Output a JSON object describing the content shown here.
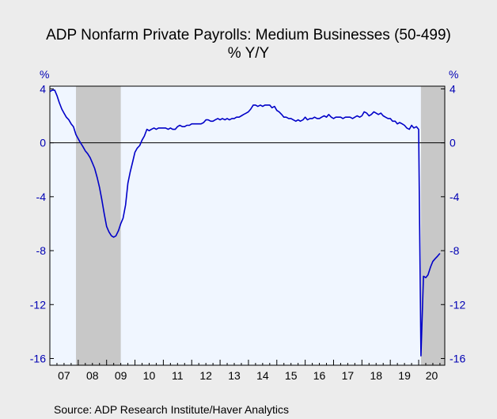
{
  "title": "ADP Nonfarm Private Payrolls: Medium Businesses (50-499)",
  "subtitle": "% Y/Y",
  "source": "Source:  ADP Research Institute/Haver Analytics",
  "y_unit_left": "%",
  "y_unit_right": "%",
  "colors": {
    "background": "#ececec",
    "plot_background": "#f0f6ff",
    "line": "#0000c8",
    "tick_labels": "#0000b4",
    "recession": "#c8c8c8"
  },
  "chart_data": {
    "type": "line",
    "title": "ADP Nonfarm Private Payrolls: Medium Businesses (50-499)",
    "subtitle": "% Y/Y",
    "xlabel": "",
    "ylabel": "%",
    "ylim": [
      -16.5,
      4.2
    ],
    "xlim": [
      2007.0,
      2020.92
    ],
    "yticks": [
      4,
      0,
      -4,
      -8,
      -12,
      -16
    ],
    "ytick_labels": [
      "4",
      "0",
      "-4",
      "-8",
      "-12",
      "-16"
    ],
    "xtick_labels": [
      "07",
      "08",
      "09",
      "10",
      "11",
      "12",
      "13",
      "14",
      "15",
      "16",
      "17",
      "18",
      "19",
      "20"
    ],
    "zero_line": true,
    "grid": false,
    "recessions": [
      [
        2007.92,
        2009.5
      ],
      [
        2020.08,
        2020.92
      ]
    ],
    "series": [
      {
        "x": [
          2007.0,
          2007.08,
          2007.17,
          2007.25,
          2007.33,
          2007.42,
          2007.5,
          2007.58,
          2007.67,
          2007.75,
          2007.83,
          2007.92,
          2008.0,
          2008.08,
          2008.17,
          2008.25,
          2008.33,
          2008.42,
          2008.5,
          2008.58,
          2008.67,
          2008.75,
          2008.83,
          2008.92,
          2009.0,
          2009.08,
          2009.17,
          2009.25,
          2009.33,
          2009.42,
          2009.5,
          2009.58,
          2009.67,
          2009.75,
          2009.83,
          2009.92,
          2010.0,
          2010.08,
          2010.17,
          2010.25,
          2010.33,
          2010.42,
          2010.5,
          2010.58,
          2010.67,
          2010.75,
          2010.83,
          2010.92,
          2011.0,
          2011.08,
          2011.17,
          2011.25,
          2011.33,
          2011.42,
          2011.5,
          2011.58,
          2011.67,
          2011.75,
          2011.83,
          2011.92,
          2012.0,
          2012.08,
          2012.17,
          2012.25,
          2012.33,
          2012.42,
          2012.5,
          2012.58,
          2012.67,
          2012.75,
          2012.83,
          2012.92,
          2013.0,
          2013.08,
          2013.17,
          2013.25,
          2013.33,
          2013.42,
          2013.5,
          2013.58,
          2013.67,
          2013.75,
          2013.83,
          2013.92,
          2014.0,
          2014.08,
          2014.17,
          2014.25,
          2014.33,
          2014.42,
          2014.5,
          2014.58,
          2014.67,
          2014.75,
          2014.83,
          2014.92,
          2015.0,
          2015.08,
          2015.17,
          2015.25,
          2015.33,
          2015.42,
          2015.5,
          2015.58,
          2015.67,
          2015.75,
          2015.83,
          2015.92,
          2016.0,
          2016.08,
          2016.17,
          2016.25,
          2016.33,
          2016.42,
          2016.5,
          2016.58,
          2016.67,
          2016.75,
          2016.83,
          2016.92,
          2017.0,
          2017.08,
          2017.17,
          2017.25,
          2017.33,
          2017.42,
          2017.5,
          2017.58,
          2017.67,
          2017.75,
          2017.83,
          2017.92,
          2018.0,
          2018.08,
          2018.17,
          2018.25,
          2018.33,
          2018.42,
          2018.5,
          2018.58,
          2018.67,
          2018.75,
          2018.83,
          2018.92,
          2019.0,
          2019.08,
          2019.17,
          2019.25,
          2019.33,
          2019.42,
          2019.5,
          2019.58,
          2019.67,
          2019.75,
          2019.83,
          2019.92,
          2020.0,
          2020.08,
          2020.17,
          2020.25,
          2020.33,
          2020.42,
          2020.5,
          2020.58,
          2020.67,
          2020.75
        ],
        "values": [
          3.8,
          3.9,
          3.9,
          3.5,
          3.0,
          2.5,
          2.2,
          1.9,
          1.7,
          1.4,
          1.2,
          0.6,
          0.3,
          0.0,
          -0.3,
          -0.6,
          -0.8,
          -1.1,
          -1.5,
          -1.9,
          -2.6,
          -3.3,
          -4.2,
          -5.3,
          -6.2,
          -6.6,
          -6.9,
          -7.0,
          -6.9,
          -6.5,
          -6.0,
          -5.6,
          -4.6,
          -3.0,
          -2.2,
          -1.4,
          -0.7,
          -0.4,
          -0.2,
          0.2,
          0.5,
          1.0,
          0.9,
          1.0,
          1.1,
          1.0,
          1.1,
          1.1,
          1.1,
          1.1,
          1.0,
          1.1,
          1.0,
          1.0,
          1.2,
          1.3,
          1.2,
          1.2,
          1.3,
          1.3,
          1.4,
          1.4,
          1.4,
          1.4,
          1.4,
          1.5,
          1.7,
          1.7,
          1.6,
          1.6,
          1.7,
          1.8,
          1.7,
          1.8,
          1.7,
          1.8,
          1.7,
          1.8,
          1.8,
          1.9,
          1.9,
          2.0,
          2.1,
          2.2,
          2.3,
          2.5,
          2.8,
          2.8,
          2.7,
          2.8,
          2.7,
          2.8,
          2.8,
          2.8,
          2.6,
          2.7,
          2.4,
          2.3,
          2.1,
          1.9,
          1.9,
          1.8,
          1.8,
          1.7,
          1.6,
          1.7,
          1.6,
          1.7,
          1.9,
          1.7,
          1.8,
          1.8,
          1.9,
          1.8,
          1.8,
          1.9,
          2.0,
          1.9,
          2.1,
          1.9,
          1.8,
          1.9,
          1.9,
          1.9,
          1.8,
          1.9,
          1.9,
          1.9,
          1.8,
          1.9,
          2.0,
          1.9,
          2.0,
          2.3,
          2.2,
          2.0,
          2.1,
          2.3,
          2.2,
          2.1,
          2.2,
          2.0,
          1.9,
          1.8,
          1.8,
          1.6,
          1.6,
          1.4,
          1.5,
          1.4,
          1.3,
          1.1,
          1.0,
          1.3,
          1.1,
          1.2,
          1.0,
          -15.8,
          -9.9,
          -10.0,
          -9.8,
          -9.2,
          -8.8,
          -8.6,
          -8.4,
          -8.2
        ]
      }
    ]
  }
}
